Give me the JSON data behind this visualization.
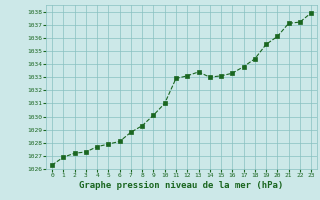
{
  "x": [
    0,
    1,
    2,
    3,
    4,
    5,
    6,
    7,
    8,
    9,
    10,
    11,
    12,
    13,
    14,
    15,
    16,
    17,
    18,
    19,
    20,
    21,
    22,
    23
  ],
  "y": [
    1026.3,
    1026.9,
    1027.2,
    1027.3,
    1027.7,
    1027.9,
    1028.1,
    1028.8,
    1029.3,
    1030.1,
    1031.0,
    1032.9,
    1033.1,
    1033.4,
    1033.0,
    1033.1,
    1033.3,
    1033.8,
    1034.4,
    1035.5,
    1036.1,
    1037.1,
    1037.2,
    1037.9
  ],
  "ylim": [
    1026,
    1038.5
  ],
  "yticks": [
    1026,
    1027,
    1028,
    1029,
    1030,
    1031,
    1032,
    1033,
    1034,
    1035,
    1036,
    1037,
    1038
  ],
  "xticks": [
    0,
    1,
    2,
    3,
    4,
    5,
    6,
    7,
    8,
    9,
    10,
    11,
    12,
    13,
    14,
    15,
    16,
    17,
    18,
    19,
    20,
    21,
    22,
    23
  ],
  "xlabel": "Graphe pression niveau de la mer (hPa)",
  "line_color": "#1a6620",
  "marker_color": "#1a6620",
  "bg_color": "#cce8e8",
  "grid_color": "#88c0c0",
  "tick_color": "#1a6620",
  "xlabel_color": "#1a6620",
  "xlabel_fontsize": 6.5,
  "tick_fontsize": 4.5
}
